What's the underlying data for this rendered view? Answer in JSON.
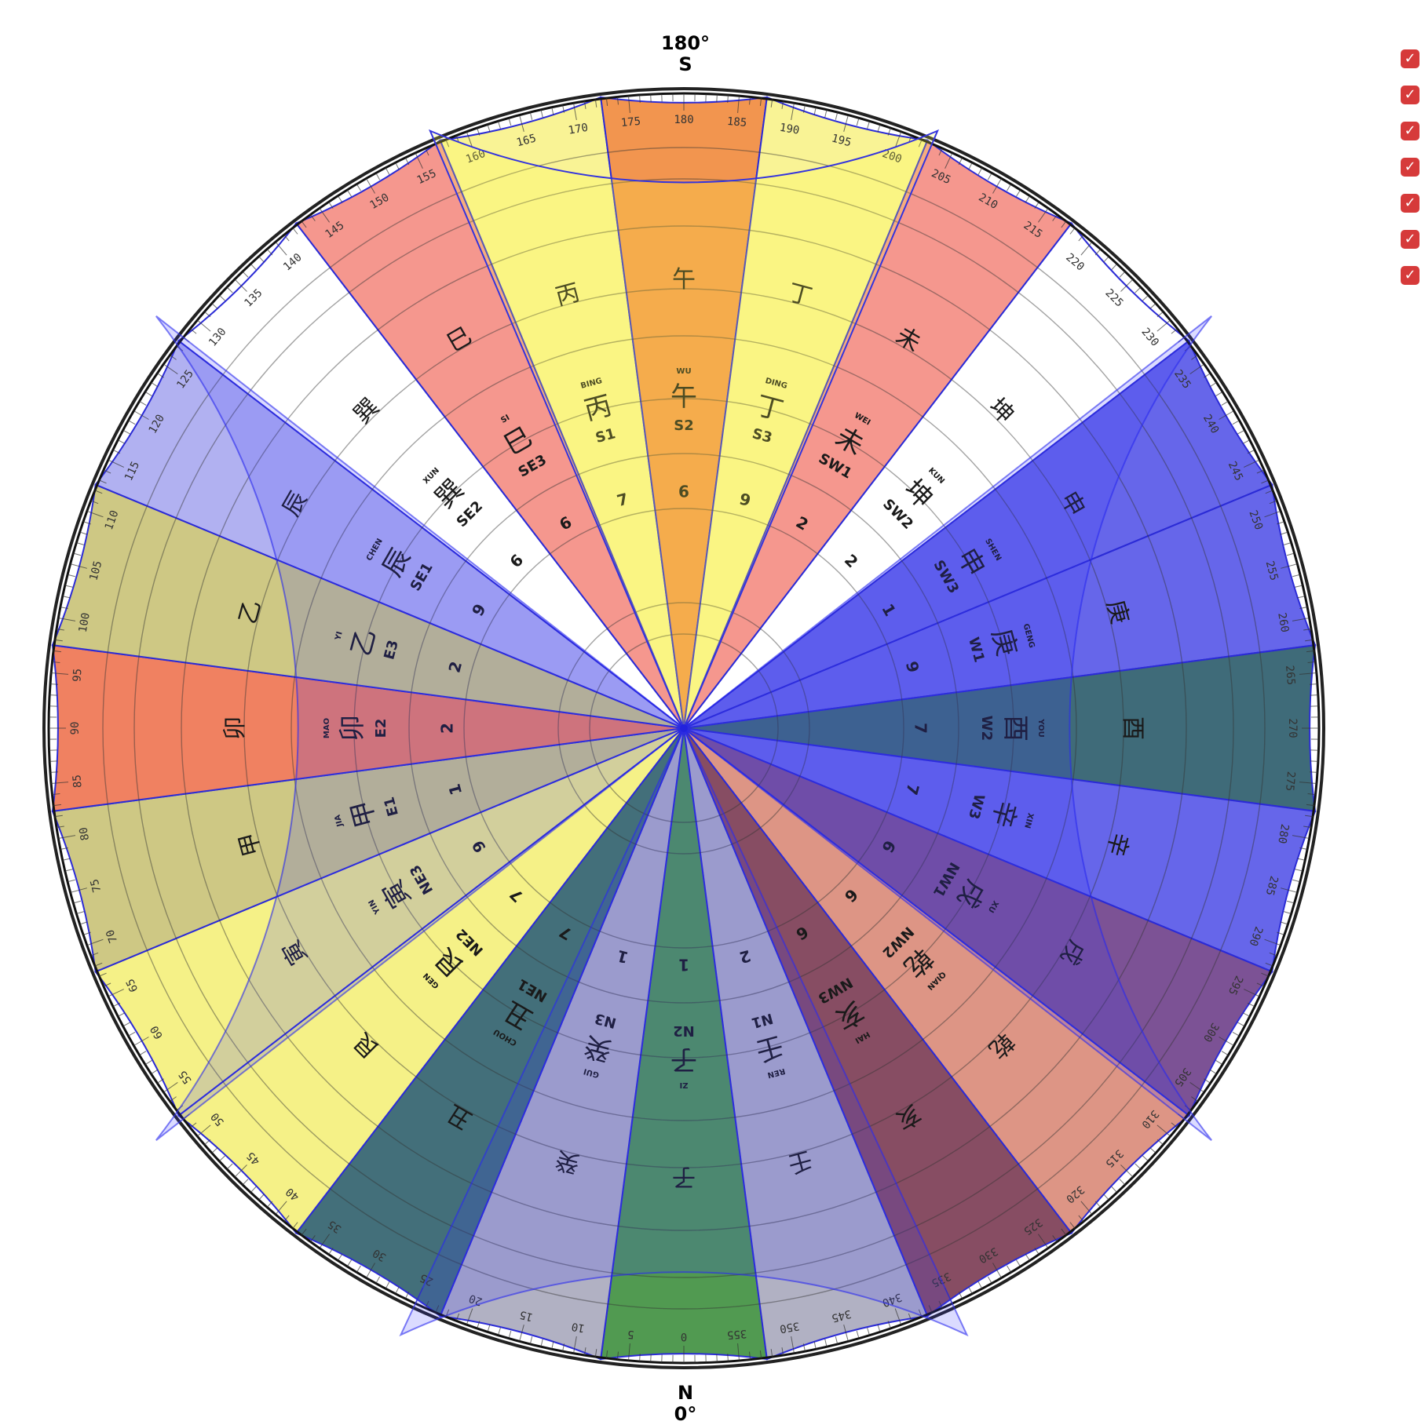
{
  "top_label": {
    "degree": "180°",
    "letter": "S"
  },
  "bottom_label": {
    "letter": "N",
    "degree": "0°"
  },
  "checkboxes": [
    {
      "checked": true
    },
    {
      "checked": true
    },
    {
      "checked": true
    },
    {
      "checked": true
    },
    {
      "checked": true
    },
    {
      "checked": true
    },
    {
      "checked": true
    }
  ],
  "mountains": [
    {
      "code": "N2",
      "han": "子",
      "pinyin": "ZI",
      "color": "#3e8f3e"
    },
    {
      "code": "N3",
      "han": "癸",
      "pinyin": "GUI",
      "color": "#a9a9bd"
    },
    {
      "code": "NE1",
      "han": "丑",
      "pinyin": "CHOU",
      "color": "#2f5f6b"
    },
    {
      "code": "NE2",
      "han": "艮",
      "pinyin": "GEN",
      "color": "#f4f07a"
    },
    {
      "code": "NE3",
      "han": "寅",
      "pinyin": "YIN",
      "color": "#f4f07a"
    },
    {
      "code": "E1",
      "han": "甲",
      "pinyin": "JIA",
      "color": "#c9c277"
    },
    {
      "code": "E2",
      "han": "卯",
      "pinyin": "MAO",
      "color": "#ee7350"
    },
    {
      "code": "E3",
      "han": "乙",
      "pinyin": "YI",
      "color": "#c9c277"
    },
    {
      "code": "SE1",
      "han": "辰",
      "pinyin": "CHEN",
      "color": "#a8a8f0"
    },
    {
      "code": "SE2",
      "han": "巽",
      "pinyin": "XUN",
      "color": "#ffffff"
    },
    {
      "code": "SE3",
      "han": "巳",
      "pinyin": "SI",
      "color": "#f48c82"
    },
    {
      "code": "S1",
      "han": "丙",
      "pinyin": "BING",
      "color": "#f8f28a"
    },
    {
      "code": "S2",
      "han": "午",
      "pinyin": "WU",
      "color": "#f18a3c"
    },
    {
      "code": "S3",
      "han": "丁",
      "pinyin": "DING",
      "color": "#f8f28a"
    },
    {
      "code": "SW1",
      "han": "未",
      "pinyin": "WEI",
      "color": "#f48c82"
    },
    {
      "code": "SW2",
      "han": "坤",
      "pinyin": "KUN",
      "color": "#ffffff"
    },
    {
      "code": "SW3",
      "han": "申",
      "pinyin": "SHEN",
      "color": "#5555e8"
    },
    {
      "code": "W1",
      "han": "庚",
      "pinyin": "GENG",
      "color": "#5555e8"
    },
    {
      "code": "W2",
      "han": "酉",
      "pinyin": "YOU",
      "color": "#2a5b6a"
    },
    {
      "code": "W3",
      "han": "辛",
      "pinyin": "XIN",
      "color": "#5555e8"
    },
    {
      "code": "NW1",
      "han": "戌",
      "pinyin": "XU",
      "color": "#6e3f8a"
    },
    {
      "code": "NW2",
      "han": "乾",
      "pinyin": "QIAN",
      "color": "#d98a78"
    },
    {
      "code": "NW3",
      "han": "亥",
      "pinyin": "HAI",
      "color": "#7a3a52"
    },
    {
      "code": "N1",
      "han": "壬",
      "pinyin": "REN",
      "color": "#a9a9bd"
    }
  ],
  "sector_numbers": [
    "1",
    "1",
    "7",
    "7",
    "9",
    "1",
    "2",
    "2",
    "9",
    "6",
    "6",
    "7",
    "6",
    "9",
    "2",
    "2",
    "1",
    "9",
    "7",
    "7",
    "6",
    "6",
    "6",
    "2"
  ],
  "degree_labels": [
    "0",
    "5",
    "10",
    "15",
    "20",
    "25",
    "30",
    "35",
    "40",
    "45",
    "50",
    "55",
    "60",
    "65",
    "70",
    "75",
    "80",
    "85",
    "90",
    "95",
    "100",
    "105",
    "110",
    "115",
    "120",
    "125",
    "130",
    "135",
    "140",
    "145",
    "150",
    "155",
    "160",
    "165",
    "170",
    "175",
    "180",
    "185",
    "190",
    "195",
    "200",
    "205",
    "210",
    "215",
    "220",
    "225",
    "230",
    "235",
    "240",
    "245",
    "250",
    "255",
    "260",
    "265",
    "270",
    "275",
    "280",
    "285",
    "290",
    "295",
    "300",
    "305",
    "310",
    "315",
    "320",
    "325",
    "330",
    "335",
    "340",
    "345",
    "350",
    "355"
  ]
}
